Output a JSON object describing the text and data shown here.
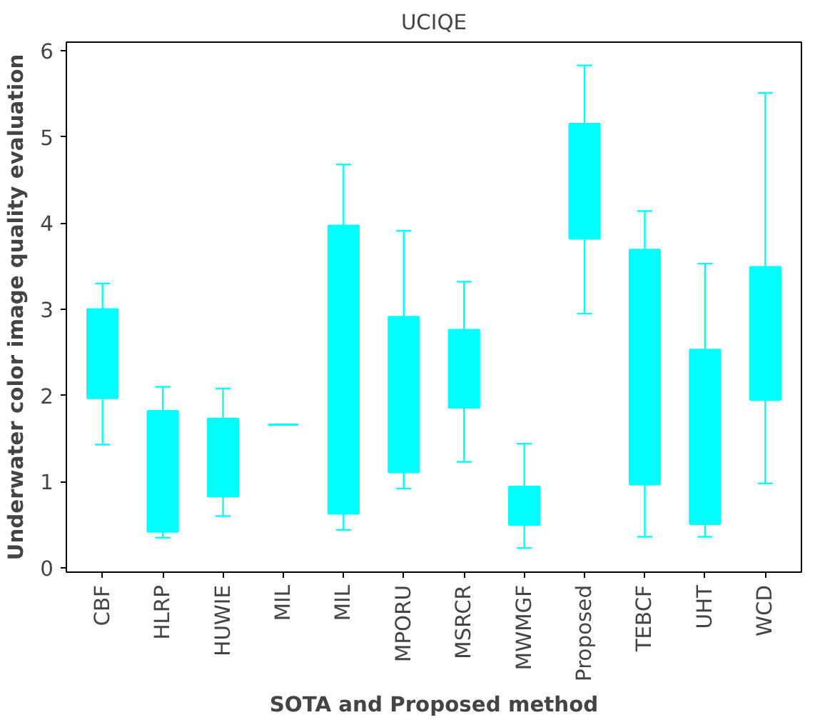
{
  "chart_data": {
    "type": "box",
    "title": "UCIQE",
    "xlabel": "SOTA and Proposed method",
    "ylabel": "Underwater color image quality evaluation",
    "categories": [
      "CBF",
      "HLRP",
      "HUWIE",
      "MIL",
      "MIL",
      "MPORU",
      "MSRCR",
      "MWMGF",
      "Proposed",
      "TEBCF",
      "UHT",
      "WCD"
    ],
    "ylim": [
      -0.05,
      6.1
    ],
    "yticks": [
      0,
      1,
      2,
      3,
      4,
      5,
      6
    ],
    "grid": false,
    "series": [
      {
        "color": "#00ffff",
        "boxes": [
          {
            "low": 1.43,
            "q1": 1.97,
            "median": 2.5,
            "q3": 3.0,
            "high": 3.3
          },
          {
            "low": 0.35,
            "q1": 0.42,
            "median": 1.1,
            "q3": 1.82,
            "high": 2.1
          },
          {
            "low": 0.6,
            "q1": 0.83,
            "median": 1.3,
            "q3": 1.73,
            "high": 2.08
          },
          {
            "low": 1.66,
            "q1": 1.66,
            "median": 1.66,
            "q3": 1.66,
            "high": 1.66
          },
          {
            "low": 0.44,
            "q1": 0.63,
            "median": 2.3,
            "q3": 3.97,
            "high": 4.68
          },
          {
            "low": 0.92,
            "q1": 1.11,
            "median": 2.0,
            "q3": 2.91,
            "high": 3.91
          },
          {
            "low": 1.23,
            "q1": 1.86,
            "median": 2.3,
            "q3": 2.76,
            "high": 3.32
          },
          {
            "low": 0.23,
            "q1": 0.5,
            "median": 0.7,
            "q3": 0.94,
            "high": 1.44
          },
          {
            "low": 2.95,
            "q1": 3.82,
            "median": 4.5,
            "q3": 5.15,
            "high": 5.83
          },
          {
            "low": 0.36,
            "q1": 0.97,
            "median": 2.3,
            "q3": 3.69,
            "high": 4.14
          },
          {
            "low": 0.36,
            "q1": 0.51,
            "median": 1.5,
            "q3": 2.53,
            "high": 3.53
          },
          {
            "low": 0.98,
            "q1": 1.95,
            "median": 2.7,
            "q3": 3.49,
            "high": 5.51
          }
        ]
      }
    ]
  }
}
